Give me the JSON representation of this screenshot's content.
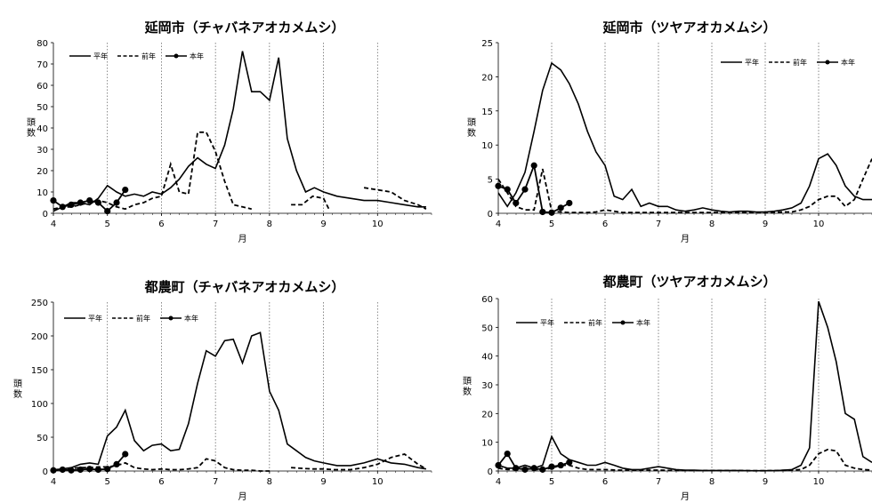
{
  "chart_data": [
    {
      "type": "line",
      "title": "延岡市（チャバネアオカメムシ）",
      "xlabel": "月",
      "ylabel": "頭数",
      "xlim": [
        4,
        11
      ],
      "ylim": [
        0,
        80
      ],
      "yticks": [
        0,
        10,
        20,
        30,
        40,
        50,
        60,
        70,
        80
      ],
      "xticks": [
        4,
        5,
        6,
        7,
        8,
        9,
        10
      ],
      "grid": "dotted vertical lines at each month",
      "legend": {
        "position": "top-left",
        "entries": [
          "平年",
          "前年",
          "本年"
        ]
      },
      "series": [
        {
          "name": "平年",
          "style": "solid",
          "x": [
            4.0,
            4.17,
            4.33,
            4.5,
            4.67,
            4.83,
            5.0,
            5.17,
            5.33,
            5.5,
            5.67,
            5.83,
            6.0,
            6.17,
            6.33,
            6.5,
            6.67,
            6.83,
            7.0,
            7.17,
            7.33,
            7.5,
            7.67,
            7.83,
            8.0,
            8.17,
            8.33,
            8.5,
            8.67,
            8.83,
            9.0,
            9.25,
            9.5,
            9.75,
            10.0,
            10.25,
            10.5,
            10.75,
            10.9
          ],
          "y": [
            1,
            3,
            5,
            5,
            4,
            7,
            13,
            10,
            8,
            9,
            8,
            10,
            9,
            12,
            16,
            22,
            26,
            23,
            21,
            32,
            49,
            76,
            57,
            57,
            53,
            73,
            35,
            20,
            10,
            12,
            10,
            8,
            7,
            6,
            6,
            5,
            4,
            3,
            3
          ]
        },
        {
          "name": "前年",
          "style": "dashed",
          "segments": [
            {
              "x": [
                4.0,
                4.17,
                4.33,
                4.5,
                4.67,
                4.83,
                5.0,
                5.17,
                5.33,
                5.5,
                5.67,
                5.83,
                6.0,
                6.17,
                6.33,
                6.5,
                6.67,
                6.83,
                7.0,
                7.17,
                7.33,
                7.5,
                7.67
              ],
              "y": [
                2,
                3,
                3,
                4,
                5,
                6,
                5,
                3,
                2,
                4,
                5,
                7,
                8,
                23,
                10,
                9,
                38,
                38,
                29,
                15,
                4,
                3,
                2
              ]
            },
            {
              "x": [
                8.4,
                8.6,
                8.8,
                9.0,
                9.1
              ],
              "y": [
                4,
                4,
                8,
                7,
                2
              ]
            },
            {
              "x": [
                9.75,
                10.0,
                10.25,
                10.5,
                10.75,
                10.9
              ],
              "y": [
                12,
                11,
                10,
                6,
                4,
                2
              ]
            }
          ]
        },
        {
          "name": "本年",
          "style": "solid-marker",
          "x": [
            4.0,
            4.17,
            4.33,
            4.5,
            4.67,
            4.83,
            5.0,
            5.17,
            5.33
          ],
          "y": [
            6,
            3,
            4,
            5,
            6,
            5,
            1,
            5,
            11
          ]
        }
      ]
    },
    {
      "type": "line",
      "title": "延岡市（ツヤアオカメムシ）",
      "xlabel": "月",
      "ylabel": "頭数",
      "xlim": [
        4,
        11
      ],
      "ylim": [
        0,
        25
      ],
      "yticks": [
        0,
        5,
        10,
        15,
        20,
        25
      ],
      "xticks": [
        4,
        5,
        6,
        7,
        8,
        9,
        10
      ],
      "grid": "dotted vertical lines at each month",
      "legend": {
        "position": "top-right",
        "entries": [
          "平年",
          "前年",
          "本年"
        ]
      },
      "series": [
        {
          "name": "平年",
          "style": "solid",
          "x": [
            4.0,
            4.17,
            4.33,
            4.5,
            4.67,
            4.83,
            5.0,
            5.17,
            5.33,
            5.5,
            5.67,
            5.83,
            6.0,
            6.17,
            6.33,
            6.5,
            6.67,
            6.83,
            7.0,
            7.17,
            7.33,
            7.5,
            7.67,
            7.83,
            8.0,
            8.17,
            8.33,
            8.5,
            8.67,
            8.83,
            9.0,
            9.17,
            9.33,
            9.5,
            9.67,
            9.83,
            10.0,
            10.17,
            10.33,
            10.5,
            10.67,
            10.83,
            11.0
          ],
          "y": [
            3,
            1,
            3,
            6,
            12,
            18,
            22,
            21,
            19,
            16,
            12,
            9,
            7,
            2.5,
            2,
            3.5,
            1,
            1.5,
            1,
            1,
            0.5,
            0.3,
            0.5,
            0.8,
            0.5,
            0.3,
            0.2,
            0.3,
            0.3,
            0.2,
            0.2,
            0.3,
            0.5,
            0.8,
            1.5,
            4,
            8,
            8.7,
            7,
            4,
            2.5,
            2,
            2
          ]
        },
        {
          "name": "前年",
          "style": "dashed",
          "x": [
            4.0,
            4.17,
            4.33,
            4.5,
            4.67,
            4.83,
            5.0,
            5.17,
            5.33,
            5.5,
            5.67,
            5.83,
            6.0,
            6.17,
            6.33,
            6.5,
            6.67,
            6.83,
            7.0,
            7.17,
            7.33,
            7.5,
            7.67,
            7.83,
            8.0,
            8.17,
            8.33,
            8.5,
            8.67,
            8.83,
            9.0,
            9.17,
            9.33,
            9.5,
            9.67,
            9.83,
            10.0,
            10.17,
            10.33,
            10.5,
            10.67,
            10.83,
            11.0
          ],
          "y": [
            5,
            3,
            1,
            0.5,
            0.5,
            6.5,
            0.3,
            0.2,
            0.1,
            0.1,
            0.1,
            0.2,
            0.5,
            0.3,
            0.1,
            0.1,
            0.1,
            0.1,
            0.1,
            0.1,
            0.1,
            0.1,
            0.1,
            0.1,
            0.1,
            0.1,
            0.1,
            0.1,
            0.1,
            0.1,
            0.1,
            0.1,
            0.2,
            0.2,
            0.5,
            1,
            2,
            2.5,
            2.5,
            1,
            2,
            5,
            8
          ]
        },
        {
          "name": "本年",
          "style": "solid-marker",
          "x": [
            4.0,
            4.17,
            4.33,
            4.5,
            4.67,
            4.83,
            5.0,
            5.17,
            5.33
          ],
          "y": [
            4,
            3.5,
            1.5,
            3.5,
            7,
            0.2,
            0.1,
            0.8,
            1.5
          ]
        }
      ]
    },
    {
      "type": "line",
      "title": "都農町（チャバネアオカメムシ）",
      "xlabel": "月",
      "ylabel": "頭数",
      "xlim": [
        4,
        11
      ],
      "ylim": [
        0,
        250
      ],
      "yticks": [
        0,
        50,
        100,
        150,
        200,
        250
      ],
      "xticks": [
        4,
        5,
        6,
        7,
        8,
        9,
        10
      ],
      "grid": "dotted vertical lines at each month",
      "legend": {
        "position": "top-left",
        "entries": [
          "平年",
          "前年",
          "本年"
        ]
      },
      "series": [
        {
          "name": "平年",
          "style": "solid",
          "x": [
            4.0,
            4.17,
            4.33,
            4.5,
            4.67,
            4.83,
            5.0,
            5.17,
            5.33,
            5.5,
            5.67,
            5.83,
            6.0,
            6.17,
            6.33,
            6.5,
            6.67,
            6.83,
            7.0,
            7.17,
            7.33,
            7.5,
            7.67,
            7.83,
            8.0,
            8.17,
            8.33,
            8.5,
            8.67,
            8.83,
            9.0,
            9.25,
            9.5,
            9.75,
            10.0,
            10.25,
            10.5,
            10.75,
            10.9
          ],
          "y": [
            2,
            3,
            5,
            10,
            12,
            10,
            52,
            65,
            90,
            45,
            30,
            38,
            40,
            30,
            32,
            70,
            130,
            178,
            170,
            193,
            195,
            160,
            200,
            205,
            118,
            90,
            40,
            30,
            20,
            15,
            12,
            8,
            8,
            12,
            18,
            12,
            10,
            5,
            3
          ]
        },
        {
          "name": "前年",
          "style": "dashed",
          "segments": [
            {
              "x": [
                4.0,
                4.17,
                4.33,
                4.5,
                4.67,
                4.83,
                5.0,
                5.17,
                5.33,
                5.5,
                5.67,
                5.83,
                6.0,
                6.17,
                6.33,
                6.5,
                6.67,
                6.83,
                7.0,
                7.17,
                7.33,
                7.5,
                7.67,
                7.83,
                8.0
              ],
              "y": [
                1,
                2,
                4,
                5,
                5,
                6,
                6,
                8,
                12,
                5,
                3,
                2,
                3,
                2,
                2,
                3,
                5,
                18,
                15,
                5,
                2,
                1,
                1,
                0,
                0
              ]
            },
            {
              "x": [
                8.4,
                8.6,
                8.8,
                9.0,
                9.2,
                9.5,
                9.75,
                10.0,
                10.25,
                10.5,
                10.75,
                10.9
              ],
              "y": [
                5,
                4,
                3,
                3,
                2,
                2,
                5,
                10,
                20,
                25,
                10,
                3
              ]
            }
          ]
        },
        {
          "name": "本年",
          "style": "solid-marker",
          "x": [
            4.0,
            4.17,
            4.33,
            4.5,
            4.67,
            4.83,
            5.0,
            5.17,
            5.33
          ],
          "y": [
            1,
            2,
            1,
            2,
            3,
            2,
            3,
            10,
            25
          ]
        }
      ]
    },
    {
      "type": "line",
      "title": "都農町（ツヤアオカメムシ）",
      "xlabel": "月",
      "ylabel": "頭数",
      "xlim": [
        4,
        11
      ],
      "ylim": [
        0,
        60
      ],
      "yticks": [
        0,
        10,
        20,
        30,
        40,
        50,
        60
      ],
      "xticks": [
        4,
        5,
        6,
        7,
        8,
        9,
        10
      ],
      "grid": "dotted vertical lines at each month",
      "legend": {
        "position": "top-left",
        "entries": [
          "平年",
          "前年",
          "本年"
        ]
      },
      "series": [
        {
          "name": "平年",
          "style": "solid",
          "x": [
            4.0,
            4.17,
            4.33,
            4.5,
            4.67,
            4.83,
            5.0,
            5.17,
            5.33,
            5.5,
            5.67,
            5.83,
            6.0,
            6.17,
            6.33,
            6.5,
            6.67,
            6.83,
            7.0,
            7.17,
            7.33,
            7.5,
            7.67,
            7.83,
            8.0,
            8.25,
            8.5,
            8.75,
            9.0,
            9.25,
            9.5,
            9.67,
            9.83,
            10.0,
            10.17,
            10.33,
            10.5,
            10.67,
            10.83,
            11.0
          ],
          "y": [
            2,
            1,
            1,
            2,
            1,
            2,
            12,
            6,
            4,
            3,
            2,
            2,
            3,
            2,
            1,
            0.5,
            0.5,
            1,
            1.5,
            1,
            0.5,
            0.3,
            0.3,
            0.2,
            0.2,
            0.2,
            0.2,
            0.1,
            0.1,
            0.2,
            0.5,
            2,
            8,
            59,
            50,
            38,
            20,
            18,
            5,
            3
          ]
        },
        {
          "name": "前年",
          "style": "dashed",
          "x": [
            4.0,
            4.17,
            4.33,
            4.5,
            4.67,
            4.83,
            5.0,
            5.17,
            5.33,
            5.5,
            5.67,
            5.83,
            6.0,
            6.25,
            6.5,
            6.75,
            7.0,
            7.25,
            7.5,
            7.75,
            8.0,
            8.25,
            8.5,
            8.75,
            9.0,
            9.25,
            9.5,
            9.67,
            9.83,
            10.0,
            10.17,
            10.33,
            10.5,
            10.67,
            10.83,
            11.0
          ],
          "y": [
            1,
            0.5,
            0.5,
            1,
            0.5,
            0.5,
            1,
            2,
            2,
            1,
            0.5,
            0.5,
            0.5,
            0.3,
            0.3,
            0.3,
            0.3,
            0.2,
            0.2,
            0.2,
            0.2,
            0.2,
            0.2,
            0.1,
            0.1,
            0.2,
            0.3,
            0.5,
            2,
            6,
            7.5,
            7,
            2,
            1,
            0.5,
            0.3
          ]
        },
        {
          "name": "本年",
          "style": "solid-marker",
          "x": [
            4.0,
            4.17,
            4.33,
            4.5,
            4.67,
            4.83,
            5.0,
            5.17,
            5.33
          ],
          "y": [
            2,
            6,
            1,
            0.5,
            1,
            0.5,
            1.5,
            2,
            3
          ]
        }
      ]
    }
  ]
}
